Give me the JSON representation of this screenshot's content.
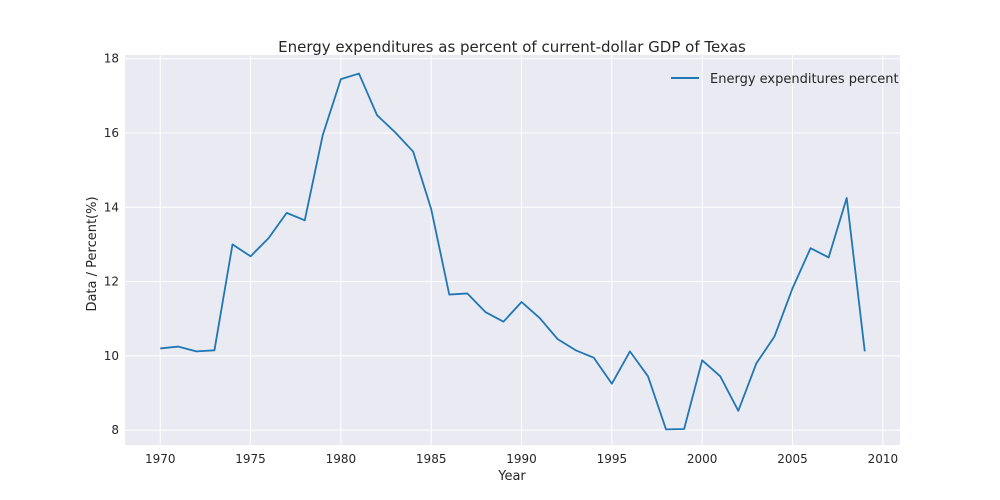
{
  "chart_data": {
    "type": "line",
    "title": "Energy expenditures as percent of current-dollar GDP of Texas",
    "xlabel": "Year",
    "ylabel": "Data / Percent(%)",
    "xlim": [
      1968.05,
      2010.95
    ],
    "ylim": [
      7.6,
      18.1
    ],
    "xticks": [
      1970,
      1975,
      1980,
      1985,
      1990,
      1995,
      2000,
      2005,
      2010
    ],
    "yticks": [
      8,
      10,
      12,
      14,
      16,
      18
    ],
    "grid": true,
    "legend_position": "top-right",
    "colors": {
      "background": "#eaeaf2",
      "grid": "#ffffff",
      "line": "#1f77b4",
      "text": "#262626"
    },
    "series": [
      {
        "name": "Energy expenditures percent",
        "x": [
          1970,
          1971,
          1972,
          1973,
          1974,
          1975,
          1976,
          1977,
          1978,
          1979,
          1980,
          1981,
          1982,
          1983,
          1984,
          1985,
          1986,
          1987,
          1988,
          1989,
          1990,
          1991,
          1992,
          1993,
          1994,
          1995,
          1996,
          1997,
          1998,
          1999,
          2000,
          2001,
          2002,
          2003,
          2004,
          2005,
          2006,
          2007,
          2008,
          2009
        ],
        "values": [
          10.2,
          10.25,
          10.12,
          10.15,
          13.0,
          12.68,
          13.17,
          13.85,
          13.65,
          15.95,
          17.45,
          17.6,
          16.48,
          16.02,
          15.5,
          13.95,
          11.65,
          11.68,
          11.18,
          10.92,
          11.45,
          11.02,
          10.45,
          10.15,
          9.95,
          9.25,
          10.12,
          9.45,
          8.02,
          8.03,
          9.88,
          9.45,
          8.52,
          9.8,
          10.52,
          11.82,
          12.9,
          12.65,
          14.25,
          10.12
        ]
      }
    ]
  }
}
